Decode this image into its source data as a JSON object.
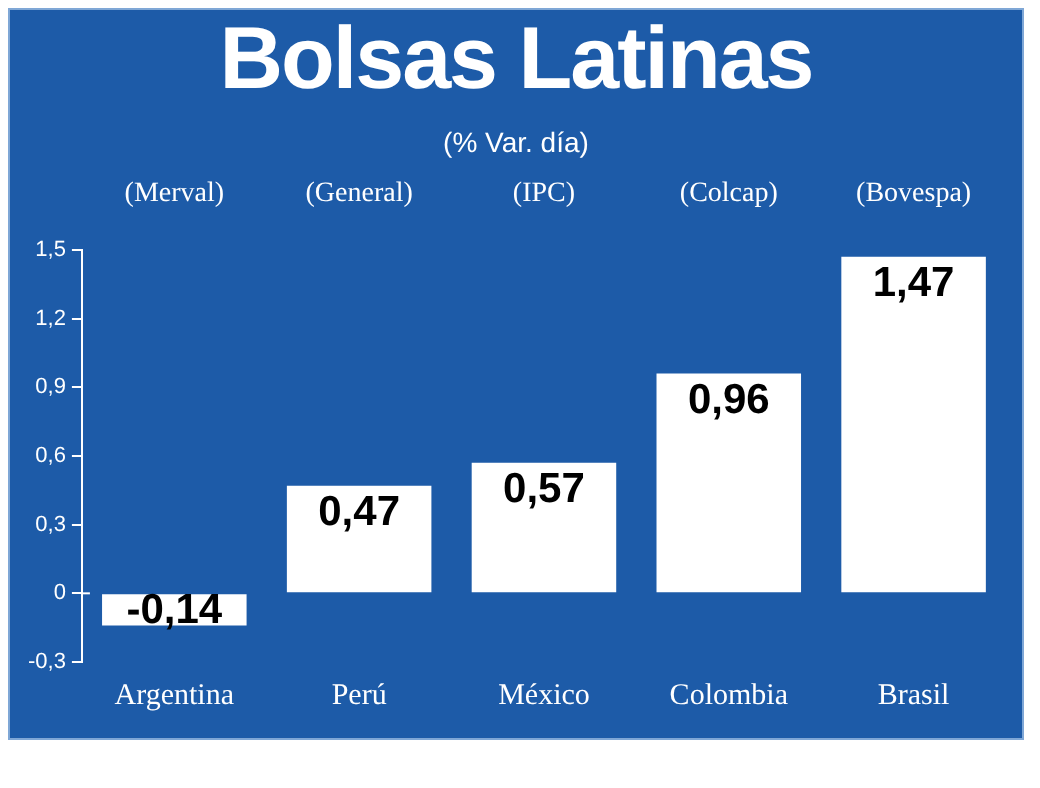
{
  "chart_data": {
    "type": "bar",
    "title": "Bolsas Latinas",
    "subtitle": "(% Var. día)",
    "categories": [
      "Argentina",
      "Perú",
      "México",
      "Colombia",
      "Brasil"
    ],
    "values": [
      -0.14,
      0.47,
      0.57,
      0.96,
      1.47
    ],
    "value_labels": [
      "-0,14",
      "0,47",
      "0,57",
      "0,96",
      "1,47"
    ],
    "color": "#ffffff",
    "ylim": [
      -0.3,
      1.5
    ],
    "yticks": [
      {
        "value": -0.3,
        "label": "-0,3"
      },
      {
        "value": 0,
        "label": "0"
      },
      {
        "value": 0.3,
        "label": "0,3"
      },
      {
        "value": 0.6,
        "label": "0,6"
      },
      {
        "value": 0.9,
        "label": "0,9"
      },
      {
        "value": 1.2,
        "label": "1,2"
      },
      {
        "value": 1.5,
        "label": "1,5"
      }
    ],
    "grid": false,
    "legend": false,
    "annotations": [
      "(Merval)",
      "(General)",
      "(IPC)",
      "(Colcap)",
      "(Bovespa)"
    ]
  }
}
